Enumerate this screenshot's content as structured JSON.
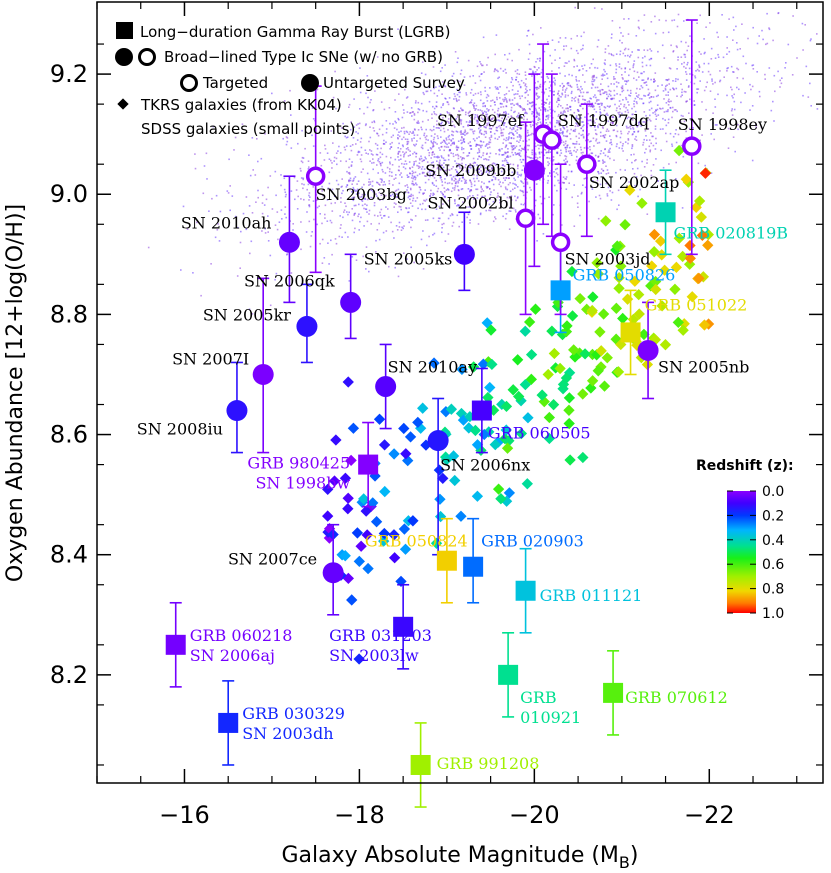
{
  "chart_data": {
    "type": "scatter",
    "xlabel": "Galaxy Absolute Magnitude (M",
    "xlabel_sub": "B",
    "xlabel_end": ")",
    "ylabel": "Oxygen Abundance [12+log(O/H)]",
    "xlim": [
      -15,
      -23.3
    ],
    "ylim": [
      8.02,
      9.32
    ],
    "xticks": [
      -16,
      -18,
      -20,
      -22
    ],
    "xtick_labels": [
      "−16",
      "−18",
      "−20",
      "−22"
    ],
    "yticks": [
      8.2,
      8.4,
      8.6,
      8.8,
      9.0,
      9.2
    ],
    "ytick_labels": [
      "8.2",
      "8.4",
      "8.6",
      "8.8",
      "9.0",
      "9.2"
    ],
    "legend": [
      "Long−duration Gamma Ray Burst (LGRB)",
      "Broad−lined Type Ic SNe (w/ no GRB)",
      "Targeted",
      "Untargeted Survey",
      "TKRS galaxies (from KK04)",
      "SDSS galaxies (small points)"
    ],
    "colorbar": {
      "title": "Redshift (z):",
      "ticks": [
        0.0,
        0.2,
        0.4,
        0.6,
        0.8,
        1.0
      ],
      "tick_labels": [
        "0.0",
        "0.2",
        "0.4",
        "0.6",
        "0.8",
        "1.0"
      ]
    },
    "lgrb": [
      {
        "name": "GRB 060218",
        "sn": "SN 2006aj",
        "x": -15.9,
        "y": 8.25,
        "yerr": [
          8.18,
          8.32
        ],
        "z": 0.03
      },
      {
        "name": "GRB 030329",
        "sn": "SN 2003dh",
        "x": -16.5,
        "y": 8.12,
        "yerr": [
          8.05,
          8.19
        ],
        "z": 0.17
      },
      {
        "name": "GRB 980425",
        "sn": "SN 1998bw",
        "x": -18.1,
        "y": 8.55,
        "yerr": [
          8.48,
          8.62
        ],
        "z": 0.01
      },
      {
        "name": "GRB 031203",
        "sn": "SN 2003lw",
        "x": -18.5,
        "y": 8.28,
        "yerr": [
          8.21,
          8.35
        ],
        "z": 0.11
      },
      {
        "name": "GRB 060505",
        "sn": "",
        "x": -19.4,
        "y": 8.64,
        "yerr": [
          8.57,
          8.71
        ],
        "z": 0.09
      },
      {
        "name": "GRB 050826",
        "sn": "",
        "x": -20.3,
        "y": 8.84,
        "yerr": [
          8.77,
          8.91
        ],
        "z": 0.3
      },
      {
        "name": "GRB 020819B",
        "sn": "",
        "x": -21.5,
        "y": 8.97,
        "yerr": [
          8.9,
          9.04
        ],
        "z": 0.41
      },
      {
        "name": "GRB 051022",
        "sn": "",
        "x": -21.1,
        "y": 8.77,
        "yerr": [
          8.7,
          8.84
        ],
        "z": 0.8
      },
      {
        "name": "GRB 050824",
        "sn": "",
        "x": -19.0,
        "y": 8.39,
        "yerr": [
          8.32,
          8.46
        ],
        "z": 0.83
      },
      {
        "name": "GRB 020903",
        "sn": "",
        "x": -19.3,
        "y": 8.38,
        "yerr": [
          8.32,
          8.46
        ],
        "z": 0.25
      },
      {
        "name": "GRB 011121",
        "sn": "",
        "x": -19.9,
        "y": 8.34,
        "yerr": [
          8.27,
          8.41
        ],
        "z": 0.36
      },
      {
        "name": "GRB 010921",
        "sn": "",
        "x": -19.7,
        "y": 8.2,
        "yerr": [
          8.13,
          8.27
        ],
        "z": 0.45
      },
      {
        "name": "GRB 070612",
        "sn": "",
        "x": -20.9,
        "y": 8.17,
        "yerr": [
          8.1,
          8.24
        ],
        "z": 0.62
      },
      {
        "name": "GRB 991208",
        "sn": "",
        "x": -18.7,
        "y": 8.05,
        "yerr": [
          7.98,
          8.12
        ],
        "z": 0.7
      }
    ],
    "snic_targeted": [
      {
        "name": "SN 2003bg",
        "x": -17.5,
        "y": 9.03,
        "yerr": [
          8.87,
          9.18
        ],
        "z": 0.0
      },
      {
        "name": "SN 1997ef",
        "x": -20.1,
        "y": 9.1,
        "yerr": [
          8.95,
          9.25
        ],
        "z": 0.0
      },
      {
        "name": "SN 1997dq",
        "x": -20.2,
        "y": 9.09,
        "yerr": [
          8.93,
          9.2
        ],
        "z": 0.0
      },
      {
        "name": "SN 1998ey",
        "x": -21.8,
        "y": 9.08,
        "yerr": [
          8.9,
          9.29
        ],
        "z": 0.0
      },
      {
        "name": "SN 2002ap",
        "x": -20.6,
        "y": 9.05,
        "yerr": [
          8.93,
          9.15
        ],
        "z": 0.0
      },
      {
        "name": "SN 2002bl",
        "x": -19.9,
        "y": 8.96,
        "yerr": [
          8.8,
          9.12
        ],
        "z": 0.0
      },
      {
        "name": "SN 2003jd",
        "x": -20.3,
        "y": 8.92,
        "yerr": [
          8.8,
          9.05
        ],
        "z": 0.0
      }
    ],
    "snic_untargeted": [
      {
        "name": "SN 2010ah",
        "x": -17.2,
        "y": 8.92,
        "yerr": [
          8.82,
          9.03
        ],
        "z": 0.05
      },
      {
        "name": "SN 2009bb",
        "x": -20.0,
        "y": 9.04,
        "yerr": [
          8.88,
          9.2
        ],
        "z": 0.01
      },
      {
        "name": "SN 2005ks",
        "x": -19.2,
        "y": 8.9,
        "yerr": [
          8.84,
          8.97
        ],
        "z": 0.1
      },
      {
        "name": "SN 2006qk",
        "x": -17.9,
        "y": 8.82,
        "yerr": [
          8.76,
          8.9
        ],
        "z": 0.06
      },
      {
        "name": "SN 2005kr",
        "x": -17.4,
        "y": 8.78,
        "yerr": [
          8.72,
          8.85
        ],
        "z": 0.13
      },
      {
        "name": "SN 2007I",
        "x": -16.9,
        "y": 8.7,
        "yerr": [
          8.57,
          8.86
        ],
        "z": 0.02
      },
      {
        "name": "SN 2010ay",
        "x": -18.3,
        "y": 8.68,
        "yerr": [
          8.61,
          8.75
        ],
        "z": 0.07
      },
      {
        "name": "SN 2008iu",
        "x": -16.6,
        "y": 8.64,
        "yerr": [
          8.57,
          8.72
        ],
        "z": 0.13
      },
      {
        "name": "SN 2006nx",
        "x": -18.9,
        "y": 8.59,
        "yerr": [
          8.4,
          8.66
        ],
        "z": 0.14
      },
      {
        "name": "SN 2005nb",
        "x": -21.3,
        "y": 8.74,
        "yerr": [
          8.66,
          8.82
        ],
        "z": 0.02
      },
      {
        "name": "SN 2007ce",
        "x": -17.7,
        "y": 8.37,
        "yerr": [
          8.3,
          8.45
        ],
        "z": 0.05
      }
    ]
  }
}
